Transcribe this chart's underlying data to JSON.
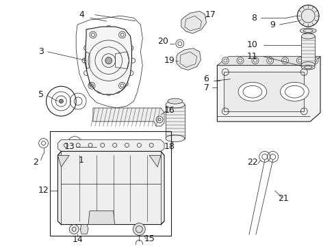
{
  "bg_color": "#ffffff",
  "line_color": "#1a1a1a",
  "figsize": [
    4.89,
    3.6
  ],
  "dpi": 100,
  "gray": "#888888",
  "darkgray": "#555555"
}
